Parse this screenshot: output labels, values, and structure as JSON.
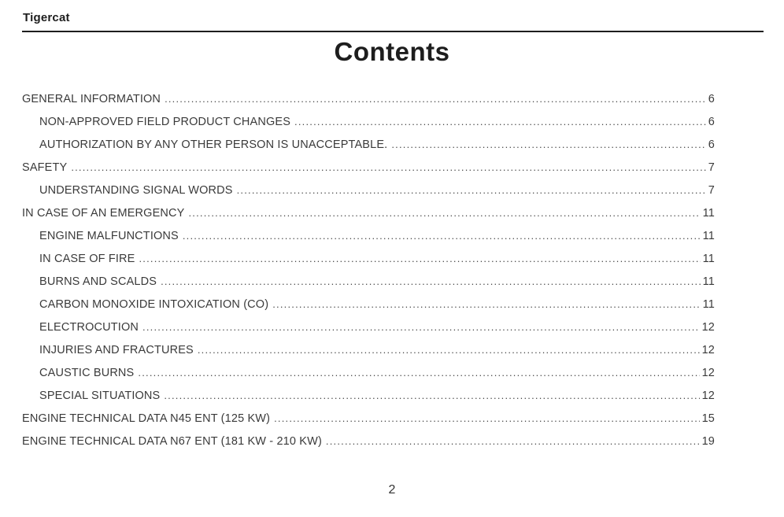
{
  "header": {
    "brand": "Tigercat"
  },
  "title": "Contents",
  "toc": {
    "entries": [
      {
        "label": "GENERAL INFORMATION",
        "page": "6",
        "level": 0
      },
      {
        "label": "NON-APPROVED FIELD PRODUCT CHANGES",
        "page": "6",
        "level": 1
      },
      {
        "label": "AUTHORIZATION BY ANY OTHER PERSON IS UNACCEPTABLE.",
        "page": "6",
        "level": 1
      },
      {
        "label": "SAFETY",
        "page": "7",
        "level": 0
      },
      {
        "label": "UNDERSTANDING SIGNAL WORDS",
        "page": "7",
        "level": 1
      },
      {
        "label": "IN CASE OF AN EMERGENCY",
        "page": "11",
        "level": 0
      },
      {
        "label": "ENGINE MALFUNCTIONS",
        "page": "11",
        "level": 1
      },
      {
        "label": "IN CASE OF FIRE",
        "page": "11",
        "level": 1
      },
      {
        "label": "BURNS AND SCALDS",
        "page": "11",
        "level": 1
      },
      {
        "label": "CARBON MONOXIDE INTOXICATION (CO)",
        "page": "11",
        "level": 1
      },
      {
        "label": "ELECTROCUTION",
        "page": "12",
        "level": 1
      },
      {
        "label": "INJURIES AND FRACTURES",
        "page": "12",
        "level": 1
      },
      {
        "label": "CAUSTIC BURNS",
        "page": "12",
        "level": 1
      },
      {
        "label": "SPECIAL SITUATIONS",
        "page": "12",
        "level": 1
      },
      {
        "label": "ENGINE TECHNICAL DATA N45 ENT (125 KW)",
        "page": "15",
        "level": 0
      },
      {
        "label": "ENGINE TECHNICAL DATA N67 ENT (181 KW -  210 KW)",
        "page": "19",
        "level": 0
      }
    ]
  },
  "footer": {
    "page_number": "2"
  }
}
